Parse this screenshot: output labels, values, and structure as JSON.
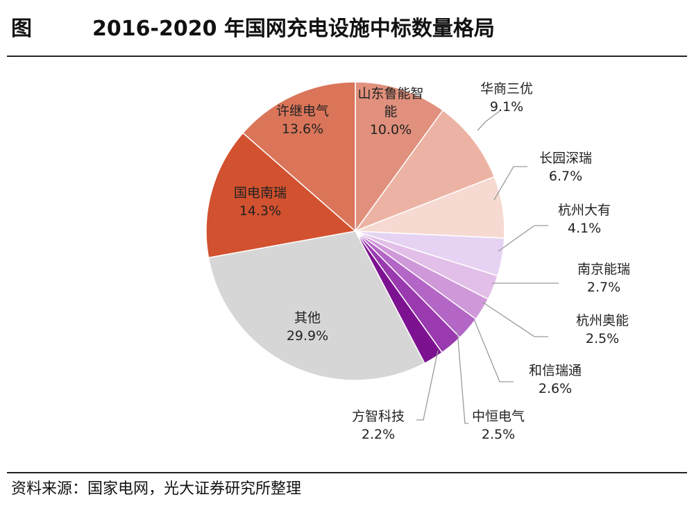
{
  "figure_label": "图",
  "title": "2016-2020 年国网充电设施中标数量格局",
  "source": "资料来源：国家电网，光大证券研究所整理",
  "chart_data": {
    "type": "pie",
    "title": "2016-2020 年国网充电设施中标数量格局",
    "slices": [
      {
        "name": "山东鲁能智能",
        "display_name": [
          "山东鲁能智",
          "能"
        ],
        "value": 10.0,
        "label": "10.0%",
        "color": "#e0907c"
      },
      {
        "name": "华商三优",
        "display_name": [
          "华商三优"
        ],
        "value": 9.1,
        "label": "9.1%",
        "color": "#ecb3a4"
      },
      {
        "name": "长园深瑞",
        "display_name": [
          "长园深瑞"
        ],
        "value": 6.7,
        "label": "6.7%",
        "color": "#f6d9d1"
      },
      {
        "name": "杭州大有",
        "display_name": [
          "杭州大有"
        ],
        "value": 4.1,
        "label": "4.1%",
        "color": "#e6d3f3"
      },
      {
        "name": "南京能瑞",
        "display_name": [
          "南京能瑞"
        ],
        "value": 2.7,
        "label": "2.7%",
        "color": "#e2bfe8"
      },
      {
        "name": "杭州奥能",
        "display_name": [
          "杭州奥能"
        ],
        "value": 2.5,
        "label": "2.5%",
        "color": "#cf99d9"
      },
      {
        "name": "和信瑞通",
        "display_name": [
          "和信瑞通"
        ],
        "value": 2.6,
        "label": "2.6%",
        "color": "#b366c6"
      },
      {
        "name": "中恒电气",
        "display_name": [
          "中恒电气"
        ],
        "value": 2.5,
        "label": "2.5%",
        "color": "#9a3aaf"
      },
      {
        "name": "方智科技",
        "display_name": [
          "方智科技"
        ],
        "value": 2.2,
        "label": "2.2%",
        "color": "#7d1291"
      },
      {
        "name": "其他",
        "display_name": [
          "其他"
        ],
        "value": 29.9,
        "label": "29.9%",
        "color": "#d6d6d6"
      },
      {
        "name": "国电南瑞",
        "display_name": [
          "国电南瑞"
        ],
        "value": 14.3,
        "label": "14.3%",
        "color": "#d2512f"
      },
      {
        "name": "许继电气",
        "display_name": [
          "许继电气"
        ],
        "value": 13.6,
        "label": "13.6%",
        "color": "#da7559"
      }
    ]
  }
}
